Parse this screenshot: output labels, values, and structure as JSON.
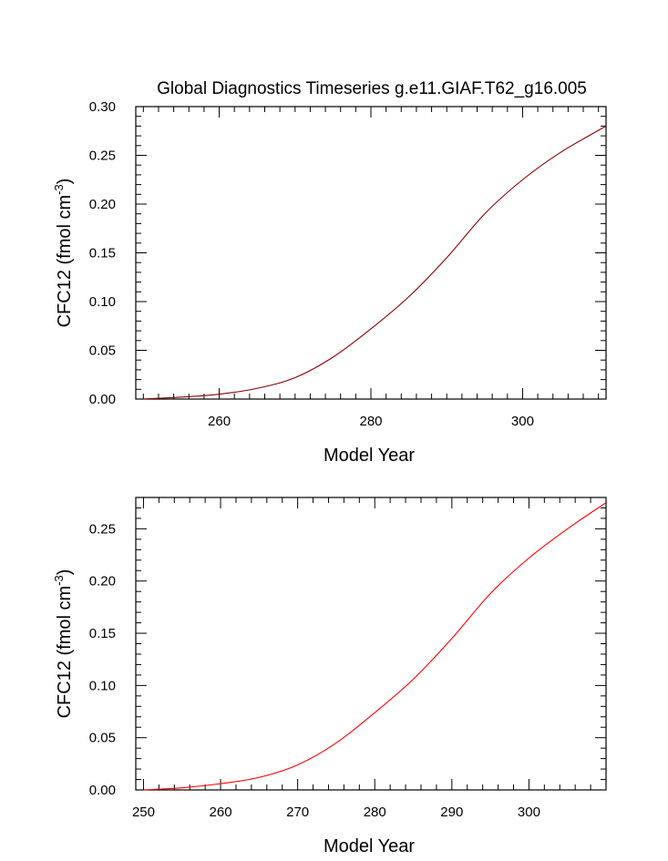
{
  "chart_data": [
    {
      "type": "line",
      "title": "Global Diagnostics Timeseries g.e11.GIAF.T62_g16.005",
      "xlabel": "Model Year",
      "ylabel_main": "CFC12 (fmol cm",
      "ylabel_exp": "-3",
      "ylabel_close": ")",
      "xlim": [
        249,
        311
      ],
      "ylim": [
        0,
        0.3
      ],
      "xticks": [
        260,
        280,
        300
      ],
      "xtick_labels": [
        "260",
        "280",
        "300"
      ],
      "yticks": [
        0,
        0.05,
        0.1,
        0.15,
        0.2,
        0.25,
        0.3
      ],
      "ytick_labels": [
        "0.00",
        "0.05",
        "0.10",
        "0.15",
        "0.20",
        "0.25",
        "0.30"
      ],
      "grid": false,
      "series": [
        {
          "color": "#8b0000",
          "x": [
            250,
            255,
            260,
            265,
            270,
            275,
            280,
            285,
            290,
            295,
            300,
            305,
            311
          ],
          "y": [
            0.0,
            0.002,
            0.005,
            0.011,
            0.022,
            0.043,
            0.072,
            0.105,
            0.145,
            0.19,
            0.225,
            0.253,
            0.28
          ]
        }
      ]
    },
    {
      "type": "line",
      "title": "",
      "xlabel": "Model Year",
      "ylabel_main": "CFC12 (fmol cm",
      "ylabel_exp": "-3",
      "ylabel_close": ")",
      "xlim": [
        249,
        310
      ],
      "ylim": [
        0,
        0.28
      ],
      "xticks": [
        250,
        260,
        270,
        280,
        290,
        300
      ],
      "xtick_labels": [
        "250",
        "260",
        "270",
        "280",
        "290",
        "300"
      ],
      "yticks": [
        0,
        0.05,
        0.1,
        0.15,
        0.2,
        0.25
      ],
      "ytick_labels": [
        "0.00",
        "0.05",
        "0.10",
        "0.15",
        "0.20",
        "0.25"
      ],
      "grid": false,
      "series": [
        {
          "color": "#ff0000",
          "x": [
            250,
            255,
            260,
            265,
            270,
            275,
            280,
            285,
            290,
            295,
            300,
            305,
            310
          ],
          "y": [
            0.0,
            0.002,
            0.006,
            0.012,
            0.024,
            0.045,
            0.074,
            0.106,
            0.145,
            0.188,
            0.222,
            0.25,
            0.275
          ]
        }
      ]
    }
  ]
}
